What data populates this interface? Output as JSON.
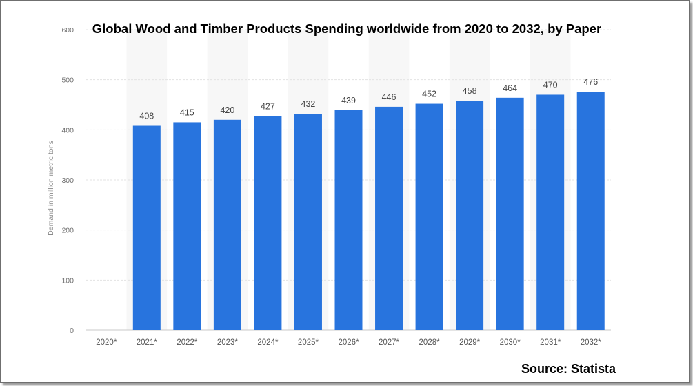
{
  "chart_data": {
    "type": "bar",
    "title": "Global Wood and Timber Products Spending worldwide from 2020 to 2032, by Paper",
    "ylabel": "Demand in million metric tons",
    "xlabel": "",
    "categories": [
      "2020*",
      "2021*",
      "2022*",
      "2023*",
      "2024*",
      "2025*",
      "2026*",
      "2027*",
      "2028*",
      "2029*",
      "2030*",
      "2031*",
      "2032*"
    ],
    "values": [
      null,
      408,
      415,
      420,
      427,
      432,
      439,
      446,
      452,
      458,
      464,
      470,
      476
    ],
    "value_labels": [
      "",
      "408",
      "415",
      "420",
      "427",
      "432",
      "439",
      "446",
      "452",
      "458",
      "464",
      "470",
      "476"
    ],
    "ylim": [
      0,
      600
    ],
    "yticks": [
      0,
      100,
      200,
      300,
      400,
      500,
      600
    ],
    "grid": true,
    "bar_color": "#2874de",
    "source_note": "Source: Statista"
  }
}
